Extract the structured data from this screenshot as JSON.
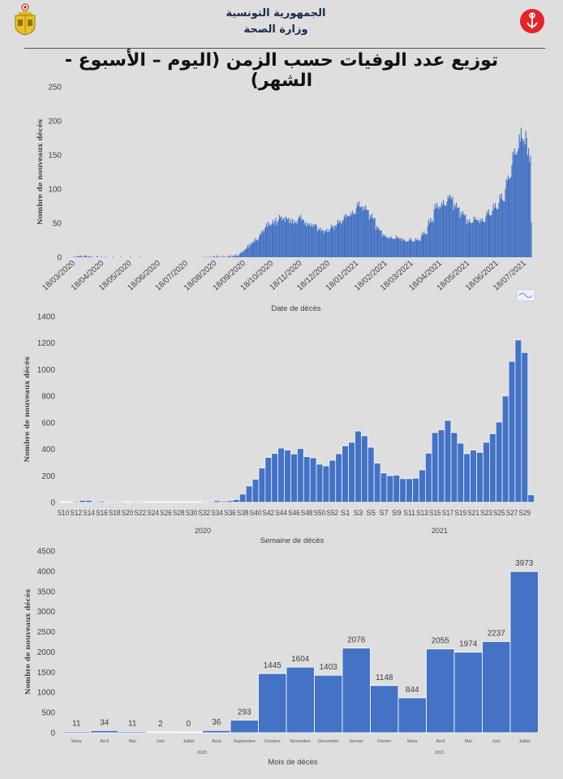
{
  "header": {
    "line1": "الجمهورية التونسية",
    "line2": "وزارة الصحة",
    "title": "توزيع عدد الوفيات حسب الزمن (اليوم – الأسبوع - الشهر)",
    "left_logo": "tunisia-coat-of-arms",
    "right_logo": "ministry-of-health-logo"
  },
  "chart_data": [
    {
      "type": "bar",
      "ylabel": "Nombre de nouveaux décès",
      "xlabel": "Date de décès",
      "ylim": [
        0,
        250
      ],
      "yticks": [
        "0",
        "50",
        "100",
        "150",
        "200",
        "250"
      ],
      "x_start": "18/03/2020",
      "x_ticks": [
        "18/03/2020",
        "18/04/2020",
        "18/05/2020",
        "18/06/2020",
        "18/07/2020",
        "18/08/2020",
        "18/09/2020",
        "18/10/2020",
        "18/11/2020",
        "18/12/2020",
        "18/01/2021",
        "18/02/2021",
        "18/03/2021",
        "18/04/2021",
        "18/05/2021",
        "18/06/2021",
        "18/07/2021"
      ],
      "color": "#4472c4",
      "values": [
        0,
        1,
        0,
        1,
        1,
        1,
        2,
        1,
        3,
        1,
        2,
        0,
        1,
        2,
        3,
        1,
        0,
        2,
        1,
        1,
        0,
        1,
        0,
        0,
        0,
        0,
        2,
        1,
        0,
        0,
        0,
        1,
        0,
        0,
        0,
        1,
        0,
        0,
        0,
        0,
        0,
        0,
        0,
        1,
        0,
        0,
        0,
        0,
        0,
        0,
        0,
        0,
        1,
        0,
        0,
        0,
        0,
        0,
        0,
        0,
        0,
        0,
        1,
        0,
        0,
        0,
        0,
        0,
        0,
        0,
        0,
        0,
        1,
        0,
        0,
        0,
        0,
        0,
        0,
        0,
        0,
        0,
        0,
        0,
        0,
        0,
        0,
        0,
        0,
        0,
        0,
        0,
        0,
        0,
        0,
        0,
        0,
        0,
        0,
        0,
        0,
        0,
        0,
        0,
        0,
        0,
        0,
        0,
        0,
        0,
        0,
        0,
        0,
        0,
        0,
        0,
        0,
        0,
        0,
        0,
        0,
        0,
        0,
        0,
        0,
        0,
        0,
        0,
        0,
        0,
        0,
        0,
        0,
        0,
        0,
        0,
        0,
        0,
        0,
        0,
        0,
        0,
        1,
        0,
        0,
        0,
        1,
        0,
        0,
        1,
        0,
        0,
        2,
        1,
        0,
        1,
        3,
        0,
        1,
        0,
        1,
        0,
        2,
        0,
        1,
        0,
        1,
        0,
        2,
        1,
        3,
        0,
        1,
        2,
        3,
        1,
        4,
        2,
        3,
        1,
        5,
        7,
        6,
        9,
        8,
        10,
        12,
        12,
        15,
        18,
        14,
        20,
        17,
        22,
        20,
        24,
        22,
        28,
        25,
        26,
        24,
        30,
        35,
        33,
        38,
        40,
        36,
        41,
        45,
        50,
        44,
        52,
        48,
        46,
        48,
        50,
        55,
        48,
        53,
        58,
        47,
        52,
        55,
        62,
        58,
        60,
        54,
        57,
        58,
        52,
        60,
        57,
        55,
        58,
        50,
        56,
        50,
        56,
        48,
        54,
        50,
        52,
        49,
        55,
        60,
        58,
        62,
        54,
        56,
        55,
        48,
        52,
        45,
        50,
        47,
        50,
        47,
        45,
        50,
        44,
        48,
        47,
        49,
        47,
        38,
        42,
        40,
        44,
        38,
        41,
        39,
        35,
        40,
        38,
        42,
        37,
        40,
        37,
        42,
        48,
        44,
        46,
        40,
        47,
        45,
        48,
        55,
        50,
        54,
        52,
        49,
        53,
        55,
        62,
        58,
        64,
        60,
        61,
        60,
        60,
        66,
        62,
        68,
        64,
        63,
        64,
        72,
        80,
        76,
        82,
        74,
        73,
        75,
        68,
        74,
        70,
        76,
        70,
        69,
        69,
        55,
        62,
        58,
        64,
        57,
        56,
        58,
        40,
        46,
        42,
        44,
        39,
        40,
        39,
        30,
        34,
        31,
        33,
        29,
        30,
        29,
        27,
        30,
        28,
        30,
        27,
        27,
        27,
        27,
        32,
        28,
        30,
        28,
        27,
        28,
        24,
        28,
        25,
        26,
        23,
        24,
        23,
        23,
        27,
        25,
        28,
        24,
        23,
        23,
        24,
        28,
        25,
        27,
        24,
        25,
        24,
        30,
        36,
        33,
        38,
        34,
        35,
        33,
        45,
        55,
        50,
        58,
        52,
        54,
        51,
        70,
        78,
        72,
        80,
        74,
        71,
        75,
        72,
        80,
        76,
        84,
        78,
        75,
        76,
        82,
        90,
        86,
        92,
        88,
        85,
        89,
        70,
        78,
        74,
        80,
        72,
        73,
        73,
        58,
        66,
        62,
        68,
        63,
        61,
        63,
        48,
        55,
        50,
        56,
        52,
        50,
        50,
        52,
        60,
        55,
        58,
        54,
        55,
        54,
        50,
        56,
        52,
        57,
        53,
        52,
        51,
        60,
        68,
        64,
        70,
        62,
        61,
        62,
        68,
        78,
        72,
        80,
        73,
        70,
        71,
        80,
        92,
        86,
        94,
        84,
        82,
        82,
        100,
        115,
        112,
        120,
        115,
        116,
        118,
        135,
        155,
        150,
        160,
        152,
        150,
        155,
        160,
        180,
        170,
        190,
        175,
        170,
        173,
        165,
        185,
        175,
        150,
        160,
        140,
        149,
        51
      ]
    },
    {
      "type": "bar",
      "ylabel": "Nombre de nouveaux décès",
      "xlabel": "Semaine de décès",
      "ylim": [
        0,
        1400
      ],
      "yticks": [
        "0",
        "200",
        "400",
        "600",
        "800",
        "1000",
        "1200",
        "1400"
      ],
      "color": "#4472c4",
      "groups": [
        {
          "label": "2020",
          "categories": [
            "S10",
            "S11",
            "S12",
            "S13",
            "S14",
            "S15",
            "S16",
            "S17",
            "S18",
            "S19",
            "S20",
            "S21",
            "S22",
            "S23",
            "S24",
            "S25",
            "S26",
            "S27",
            "S28",
            "S29",
            "S30",
            "S31",
            "S32",
            "S33",
            "S34",
            "S35",
            "S36",
            "S37",
            "S38",
            "S39",
            "S40",
            "S41",
            "S42",
            "S43",
            "S44",
            "S45",
            "S46",
            "S47",
            "S48",
            "S49",
            "S50",
            "S51",
            "S52",
            "S53"
          ],
          "values": [
            0,
            0,
            3,
            10,
            10,
            2,
            4,
            1,
            1,
            1,
            0,
            1,
            1,
            0,
            0,
            0,
            0,
            0,
            0,
            0,
            0,
            0,
            1,
            2,
            8,
            4,
            8,
            16,
            57,
            118,
            169,
            253,
            333,
            363,
            404,
            388,
            359,
            400,
            339,
            330,
            282,
            269,
            312,
            361
          ]
        },
        {
          "label": "2021",
          "categories": [
            "S1",
            "S2",
            "S3",
            "S4",
            "S5",
            "S6",
            "S7",
            "S8",
            "S9",
            "S10",
            "S11",
            "S12",
            "S13",
            "S14",
            "S15",
            "S16",
            "S17",
            "S18",
            "S19",
            "S20",
            "S21",
            "S22",
            "S23",
            "S24",
            "S25",
            "S26",
            "S27",
            "S28",
            "S29",
            "S30"
          ],
          "values": [
            420,
            447,
            532,
            496,
            410,
            290,
            216,
            196,
            200,
            173,
            173,
            177,
            239,
            365,
            520,
            541,
            612,
            520,
            441,
            361,
            388,
            371,
            447,
            512,
            600,
            796,
            1057,
            1218,
            1124,
            51
          ]
        }
      ]
    },
    {
      "type": "bar",
      "ylabel": "Nombre de nouveaux décès",
      "xlabel": "Mois de décès",
      "ylim": [
        0,
        4500
      ],
      "yticks": [
        "0",
        "500",
        "1000",
        "1500",
        "2000",
        "2500",
        "3000",
        "3500",
        "4000",
        "4500"
      ],
      "color": "#4472c4",
      "groups": [
        {
          "label": "2020",
          "categories": [
            "Mars",
            "Avril",
            "Mai",
            "Juin",
            "Juillet",
            "Aout",
            "Septembre",
            "Octobre",
            "Novembre",
            "Décembre"
          ],
          "values": [
            11,
            34,
            11,
            2,
            0,
            36,
            293,
            1445,
            1604,
            1403
          ]
        },
        {
          "label": "2021",
          "categories": [
            "Janvier",
            "Février",
            "Mars",
            "Avril",
            "Mai",
            "Juin",
            "Juillet"
          ],
          "values": [
            2076,
            1148,
            844,
            2055,
            1974,
            2237,
            3973
          ]
        }
      ]
    }
  ]
}
